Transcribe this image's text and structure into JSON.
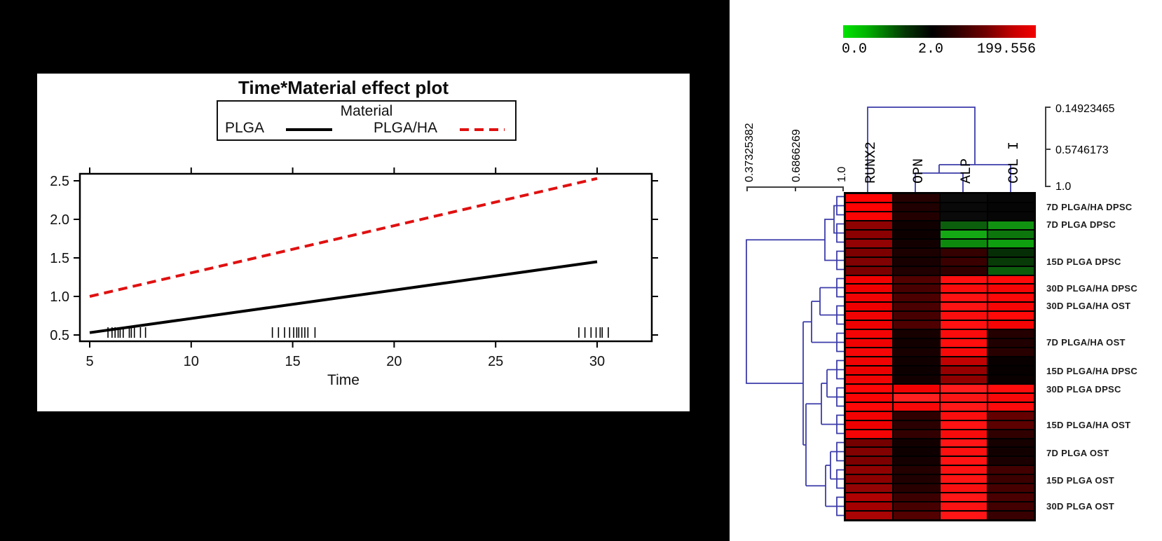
{
  "chart_data": [
    {
      "type": "line",
      "title": "Time*Material effect plot",
      "xlabel": "Time",
      "legend_title": "Material",
      "x_ticks": [
        "5",
        "10",
        "15",
        "20",
        "25",
        "30"
      ],
      "y_ticks": [
        "0.5",
        "1.0",
        "1.5",
        "2.0",
        "2.5"
      ],
      "xlim": [
        4.1,
        31.0
      ],
      "ylim": [
        0.45,
        2.62
      ],
      "grid": false,
      "legend_position": "top",
      "series": [
        {
          "name": "PLGA",
          "color": "#000000",
          "style": "solid",
          "points": [
            [
              5,
              0.53
            ],
            [
              30,
              1.45
            ]
          ]
        },
        {
          "name": "PLGA/HA",
          "color": "#e01010",
          "style": "dashed",
          "points": [
            [
              5,
              1.0
            ],
            [
              30,
              2.53
            ]
          ]
        }
      ],
      "rug_x": [
        5.9,
        6.1,
        6.25,
        6.4,
        6.5,
        6.65,
        6.95,
        7.05,
        7.2,
        7.5,
        7.75,
        14.0,
        14.3,
        14.6,
        14.85,
        15.05,
        15.2,
        15.3,
        15.45,
        15.6,
        15.75,
        16.1,
        29.1,
        29.4,
        29.7,
        29.95,
        30.15,
        30.25,
        30.55
      ]
    },
    {
      "type": "heatmap",
      "color_key": {
        "tick_labels": [
          "0.0",
          "2.0",
          "199.556"
        ],
        "left_color": "#00e400",
        "mid_color": "#000000",
        "right_color": "#f40000"
      },
      "columns": [
        "RUNX2",
        "OPN",
        "ALP",
        "COL I"
      ],
      "row_labels": [
        "7D PLGA/HA DPSC",
        "7D PLGA DPSC",
        "15D PLGA DPSC",
        "30D PLGA/HA DPSC",
        "30D PLGA/HA OST",
        "7D PLGA/HA OST",
        "15D PLGA/HA DPSC",
        "30D PLGA DPSC",
        "15D PLGA/HA OST",
        "7D PLGA OST",
        "15D PLGA OST",
        "30D PLGA OST"
      ],
      "rows_per_label": 3,
      "row_dendrogram_ticks": [
        "0.37325382",
        "0.6866269",
        "1.0"
      ],
      "col_dendrogram_ticks": [
        "0.14923465",
        "0.5746173",
        "1.0"
      ],
      "cell_colors": [
        [
          "#ff0303",
          "#260000",
          "#0b0b0b",
          "#060606"
        ],
        [
          "#ff0202",
          "#200000",
          "#090909",
          "#050505"
        ],
        [
          "#fb0404",
          "#230000",
          "#0a0a0a",
          "#060606"
        ],
        [
          "#8f0202",
          "#100000",
          "#0b5e0b",
          "#109210"
        ],
        [
          "#8b0000",
          "#0d0000",
          "#14a814",
          "#0c750c"
        ],
        [
          "#930303",
          "#120000",
          "#0d8a0d",
          "#0fa00f"
        ],
        [
          "#7d0000",
          "#1c0000",
          "#340000",
          "#062e06"
        ],
        [
          "#800202",
          "#180000",
          "#3a0000",
          "#083a08"
        ],
        [
          "#7a0000",
          "#200000",
          "#300000",
          "#0c5c0c"
        ],
        [
          "#f00202",
          "#520000",
          "#ff0f0f",
          "#ff0a0a"
        ],
        [
          "#ee0000",
          "#480000",
          "#fb0c0c",
          "#f50505"
        ],
        [
          "#f20404",
          "#4c0000",
          "#ff1212",
          "#fb0808"
        ],
        [
          "#ee0000",
          "#4a0000",
          "#ff1414",
          "#f70606"
        ],
        [
          "#f20303",
          "#460000",
          "#fb0e0e",
          "#ff0909"
        ],
        [
          "#ef0101",
          "#4e0000",
          "#ff1111",
          "#f40404"
        ],
        [
          "#f40404",
          "#160000",
          "#fb0b0b",
          "#240000"
        ],
        [
          "#f00202",
          "#120000",
          "#ff0e0e",
          "#200000"
        ],
        [
          "#f60606",
          "#180000",
          "#f80909",
          "#280000"
        ],
        [
          "#ef0303",
          "#100000",
          "#c00202",
          "#080000"
        ],
        [
          "#ec0101",
          "#0d0000",
          "#960000",
          "#060000"
        ],
        [
          "#f10404",
          "#120000",
          "#8e0000",
          "#0a0000"
        ],
        [
          "#ff0606",
          "#f20202",
          "#ff1c1c",
          "#ff0d0d"
        ],
        [
          "#fb0404",
          "#ff2020",
          "#fb1616",
          "#f80808"
        ],
        [
          "#ff0808",
          "#f80808",
          "#ff1919",
          "#fb0b0b"
        ],
        [
          "#f20202",
          "#2e0000",
          "#fb0e0e",
          "#640000"
        ],
        [
          "#ee0000",
          "#2a0000",
          "#ff1212",
          "#5c0000"
        ],
        [
          "#f40404",
          "#320000",
          "#f80b0b",
          "#300000"
        ],
        [
          "#740000",
          "#120000",
          "#ff1515",
          "#160000"
        ],
        [
          "#820202",
          "#0e0000",
          "#fb0f0f",
          "#120000"
        ],
        [
          "#7c0000",
          "#140000",
          "#ff1212",
          "#1a0000"
        ],
        [
          "#900202",
          "#240000",
          "#fb1111",
          "#420000"
        ],
        [
          "#8c0000",
          "#200000",
          "#ff1414",
          "#3c0000"
        ],
        [
          "#940404",
          "#280000",
          "#f81010",
          "#460000"
        ],
        [
          "#b00202",
          "#3c0000",
          "#ff1717",
          "#4a0000"
        ],
        [
          "#a40000",
          "#460000",
          "#fb1212",
          "#420000"
        ],
        [
          "#aa0404",
          "#520000",
          "#ff1515",
          "#380000"
        ]
      ]
    }
  ]
}
